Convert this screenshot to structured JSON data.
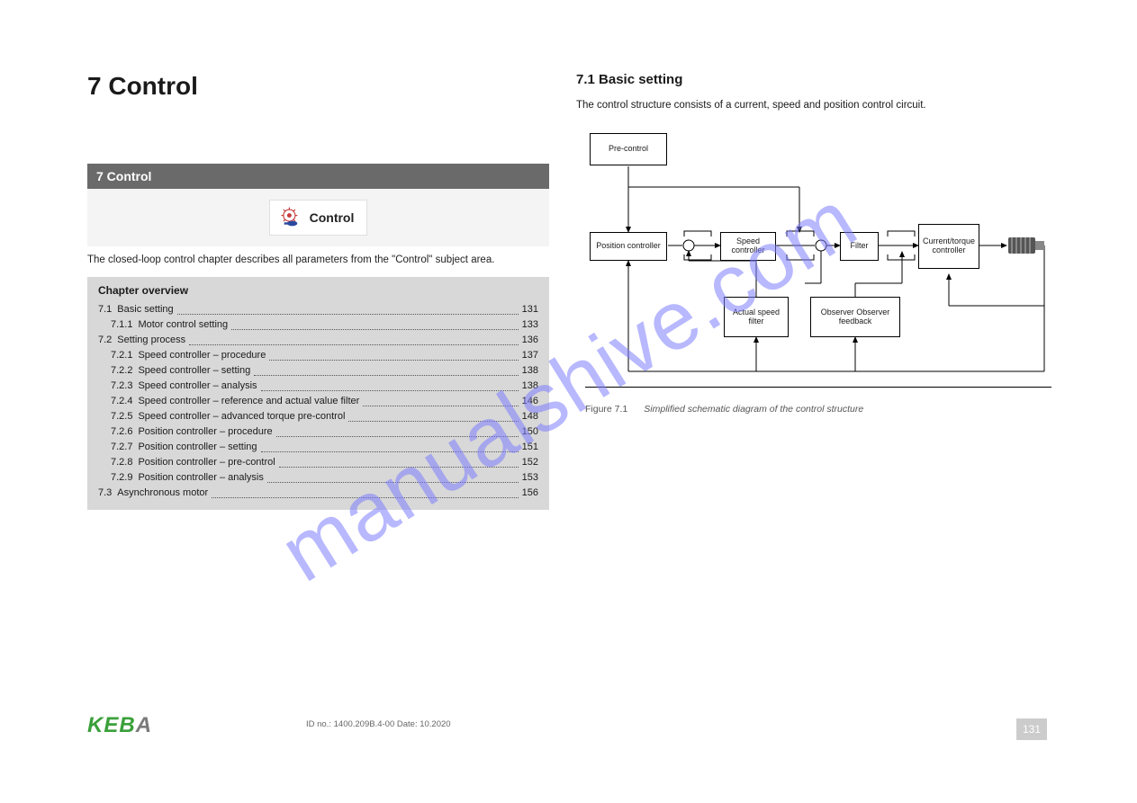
{
  "page": {
    "title": "7 Control",
    "footer_id": "ID no.: 1400.209B.4-00   Date: 10.2020",
    "footer_page": "131",
    "logo": "KEBA"
  },
  "left": {
    "section_header": "7 Control",
    "control_btn_label": "Control",
    "intro": "The closed-loop control chapter describes all parameters from the \"Control\" subject area.",
    "chapter_contents_title": "Chapter overview",
    "toc": [
      {
        "l": 1,
        "num": "7.1",
        "label": "Basic setting",
        "page": "131"
      },
      {
        "l": 2,
        "num": "7.1.1",
        "label": "Motor control setting",
        "page": "133"
      },
      {
        "l": 1,
        "num": "7.2",
        "label": "Setting process",
        "page": "136"
      },
      {
        "l": 2,
        "num": "7.2.1",
        "label": "Speed controller – procedure",
        "page": "137"
      },
      {
        "l": 2,
        "num": "7.2.2",
        "label": "Speed controller – setting",
        "page": "138"
      },
      {
        "l": 2,
        "num": "7.2.3",
        "label": "Speed controller – analysis",
        "page": "138"
      },
      {
        "l": 2,
        "num": "7.2.4",
        "label": "Speed controller – reference and actual value filter",
        "page": "146"
      },
      {
        "l": 2,
        "num": "7.2.5",
        "label": "Speed controller – advanced torque pre-control",
        "page": "148"
      },
      {
        "l": 2,
        "num": "7.2.6",
        "label": "Position controller – procedure",
        "page": "150"
      },
      {
        "l": 2,
        "num": "7.2.7",
        "label": "Position controller – setting",
        "page": "151"
      },
      {
        "l": 2,
        "num": "7.2.8",
        "label": "Position controller – pre-control",
        "page": "152"
      },
      {
        "l": 2,
        "num": "7.2.9",
        "label": "Position controller – analysis",
        "page": "153"
      },
      {
        "l": 1,
        "num": "7.3",
        "label": "Asynchronous motor",
        "page": "156"
      }
    ]
  },
  "right": {
    "h2": "7.1 Basic setting",
    "p1": "The control structure consists of a current, speed and position control circuit."
  },
  "diagram": {
    "background": "#ffffff",
    "line_color": "#000000",
    "blocks": {
      "precontrol": "Pre-control",
      "position": "Position controller",
      "speed": "Speed controller",
      "filter": "Filter",
      "curtorque": "Current/torque controller",
      "actspeed": "Actual speed filter",
      "obs": "Observer Observer feedback"
    },
    "caption_num": "Figure 7.1",
    "caption_text": "Simplified schematic diagram of the control structure"
  },
  "watermark": "manualshive.com",
  "colors": {
    "section_header_bg": "#6a6a6a",
    "section_header_fg": "#ffffff",
    "toc_bg": "#d8d8d8",
    "watermark_color": "#7f7fff",
    "logo_green": "#3aa03a",
    "logo_gray": "#7a7a7a"
  }
}
